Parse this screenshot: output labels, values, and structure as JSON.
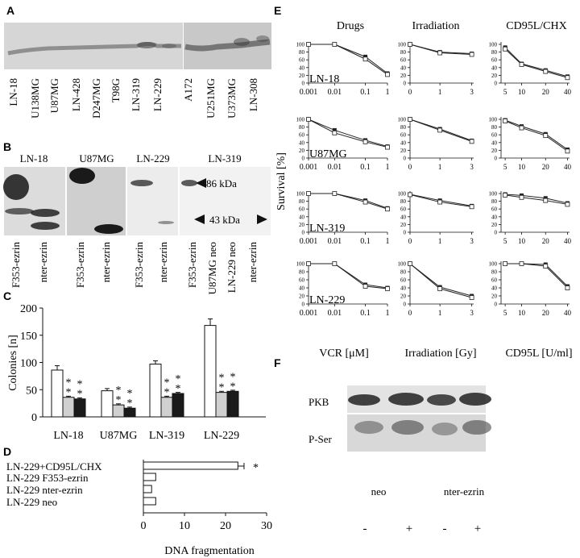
{
  "panels": {
    "A": "A",
    "B": "B",
    "C": "C",
    "D": "D",
    "E": "E",
    "F": "F"
  },
  "panelA": {
    "lanes": [
      "LN-18",
      "U138MG",
      "U87MG",
      "LN-428",
      "D247MG",
      "T98G",
      "LN-319",
      "LN-229",
      "A172",
      "U251MG",
      "U373MG",
      "LN-308"
    ]
  },
  "panelB": {
    "sections": [
      "LN-18",
      "U87MG",
      "LN-229",
      "LN-319"
    ],
    "lanes": [
      "F353-ezrin",
      "nter-ezrin",
      "F353-ezrin",
      "nter-ezrin",
      "F353-ezrin",
      "nter-ezrin",
      "F353-ezrin",
      "U87MG neo",
      "LN-229 neo",
      "nter-ezrin"
    ],
    "marker_high": "86 kDa",
    "marker_low": "43 kDa"
  },
  "chart_data": [
    {
      "panel": "C",
      "type": "bar",
      "categories": [
        "LN-18",
        "U87MG",
        "LN-319",
        "LN-229"
      ],
      "series": [
        {
          "fill": "white",
          "values": [
            86,
            48,
            97,
            168
          ],
          "errors": [
            8,
            4,
            6,
            12
          ]
        },
        {
          "fill": "grey",
          "values": [
            36,
            22,
            36,
            45
          ],
          "errors": [
            2,
            2,
            2,
            2
          ]
        },
        {
          "fill": "black",
          "values": [
            33,
            16,
            43,
            47
          ],
          "errors": [
            2,
            2,
            2,
            2
          ]
        }
      ],
      "ylabel": "Colonies [n]",
      "ylim": [
        0,
        200
      ],
      "yticks": [
        "0",
        "50",
        "100",
        "150",
        "200"
      ],
      "significance_mark": "**"
    },
    {
      "panel": "D",
      "type": "bar",
      "orientation": "horizontal",
      "categories": [
        "LN-229+CD95L/CHX",
        "LN-229 F353-ezrin",
        "LN-229 nter-ezrin",
        "LN-229 neo"
      ],
      "values": [
        23,
        3,
        2,
        3
      ],
      "errors": [
        1.5,
        0,
        0,
        0
      ],
      "xlabel": "DNA fragmentation",
      "xlim": [
        0,
        30
      ],
      "xticks": [
        "0",
        "10",
        "20",
        "30"
      ],
      "significance_mark": "*"
    },
    {
      "panel": "E",
      "type": "line",
      "column_titles": [
        "Drugs",
        "Irradiation",
        "CD95L/CHX"
      ],
      "ylabel": "Survival [%]",
      "ylim": [
        0,
        100
      ],
      "yticks": [
        "0",
        "20",
        "40",
        "60",
        "80",
        "100"
      ],
      "xlabels": [
        "VCR [μM]",
        "Irradiation [Gy]",
        "CD95L [U/ml]"
      ],
      "xticks": [
        [
          "0.001",
          "0.01",
          "0.1",
          "1"
        ],
        [
          "0",
          "1",
          "3"
        ],
        [
          "5",
          "10",
          "20",
          "40"
        ]
      ],
      "rows": [
        {
          "label": "LN-18",
          "curves": [
            [
              [
                100,
                100,
                68,
                25
              ],
              [
                100,
                100,
                62,
                22
              ]
            ],
            [
              [
                100,
                80,
                76
              ],
              [
                100,
                78,
                74
              ]
            ],
            [
              [
                92,
                50,
                33,
                17
              ],
              [
                88,
                48,
                30,
                14
              ]
            ]
          ]
        },
        {
          "label": "U87MG",
          "curves": [
            [
              [
                100,
                72,
                46,
                30
              ],
              [
                100,
                65,
                42,
                28
              ]
            ],
            [
              [
                100,
                75,
                45
              ],
              [
                100,
                72,
                43
              ]
            ],
            [
              [
                98,
                82,
                62,
                22
              ],
              [
                96,
                78,
                58,
                18
              ]
            ]
          ]
        },
        {
          "label": "LN-319",
          "curves": [
            [
              [
                100,
                100,
                82,
                62
              ],
              [
                100,
                100,
                78,
                60
              ]
            ],
            [
              [
                98,
                82,
                68
              ],
              [
                97,
                78,
                66
              ]
            ],
            [
              [
                98,
                95,
                88,
                75
              ],
              [
                96,
                90,
                82,
                72
              ]
            ]
          ]
        },
        {
          "label": "LN-229",
          "curves": [
            [
              [
                100,
                100,
                48,
                40
              ],
              [
                100,
                100,
                44,
                38
              ]
            ],
            [
              [
                100,
                42,
                20
              ],
              [
                100,
                38,
                16
              ]
            ],
            [
              [
                100,
                100,
                98,
                44
              ],
              [
                100,
                100,
                94,
                40
              ]
            ]
          ]
        }
      ]
    }
  ],
  "panelF": {
    "row_labels": [
      "PKB",
      "P-Ser"
    ],
    "group_labels": [
      "neo",
      "nter-ezrin"
    ],
    "lane_signs": [
      "-",
      "+",
      "-",
      "+"
    ]
  }
}
